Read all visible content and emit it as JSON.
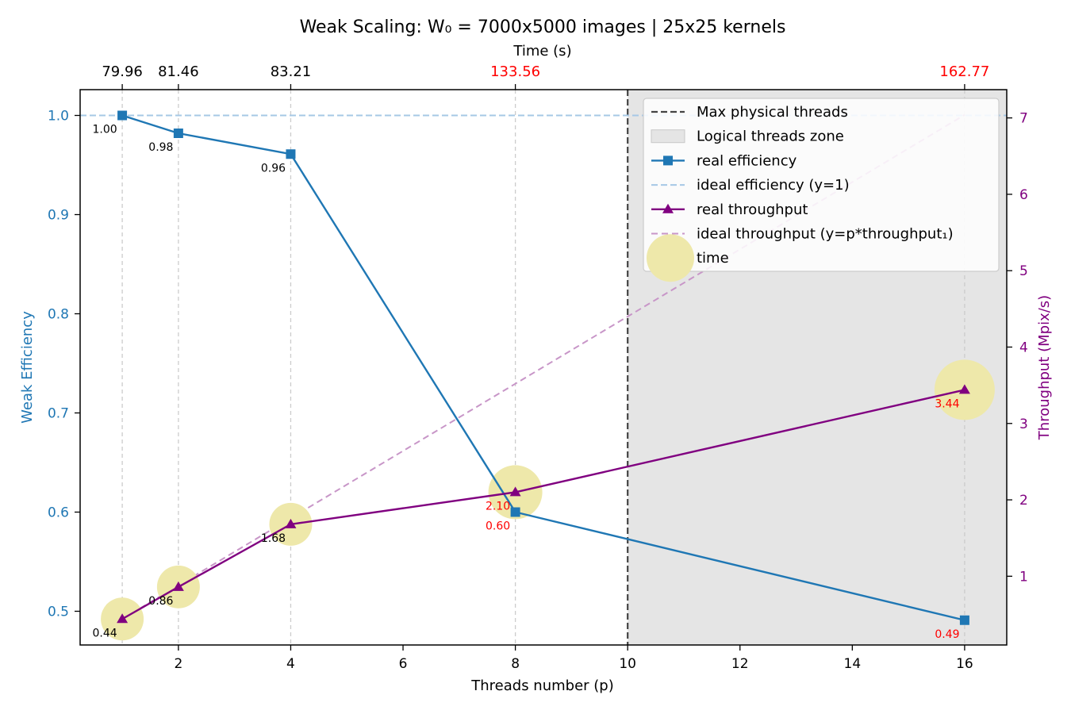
{
  "chart_data": {
    "type": "line",
    "title": "Weak Scaling: W₀ = 7000x5000 images | 25x25 kernels",
    "xlabel": "Threads number (p)",
    "ylabel_left": "Weak Efficiency",
    "ylabel_right": "Throughput (Mpix/s)",
    "top_axis_label": "Time (s)",
    "xlim": [
      0.25,
      16.75
    ],
    "ylim_left": [
      0.466,
      1.026
    ],
    "ylim_right": [
      0.1,
      7.37
    ],
    "x_ticks": [
      2,
      4,
      6,
      8,
      10,
      12,
      14,
      16
    ],
    "y_left_ticks": [
      0.5,
      0.6,
      0.7,
      0.8,
      0.9,
      1.0
    ],
    "y_left_tick_labels": [
      "0.5",
      "0.6",
      "0.7",
      "0.8",
      "0.9",
      "1.0"
    ],
    "y_right_ticks": [
      1,
      2,
      3,
      4,
      5,
      6,
      7
    ],
    "threads": [
      1,
      2,
      4,
      8,
      16
    ],
    "time_labels": [
      "79.96",
      "81.46",
      "83.21",
      "133.56",
      "162.77"
    ],
    "time_label_colors": [
      "#000000",
      "#000000",
      "#000000",
      "#ff0000",
      "#ff0000"
    ],
    "max_physical_threads": 10,
    "logical_zone": [
      10,
      16.75
    ],
    "series": [
      {
        "name": "real efficiency",
        "axis": "left",
        "color": "#1f77b4",
        "marker": "square",
        "values": [
          1.0,
          0.982,
          0.961,
          0.6,
          0.491
        ],
        "value_labels": [
          "1.00",
          "0.98",
          "0.96",
          "0.60",
          "0.49"
        ],
        "label_colors": [
          "#000000",
          "#000000",
          "#000000",
          "#ff0000",
          "#ff0000"
        ]
      },
      {
        "name": "real throughput",
        "axis": "right",
        "color": "#800080",
        "marker": "triangle",
        "values": [
          0.44,
          0.86,
          1.68,
          2.1,
          3.44
        ],
        "value_labels": [
          "0.44",
          "0.86",
          "1.68",
          "2.10",
          "3.44"
        ],
        "label_colors": [
          "#000000",
          "#000000",
          "#000000",
          "#ff0000",
          "#ff0000"
        ]
      }
    ],
    "ideal_efficiency": 1.0,
    "ideal_throughput_per_thread": 0.44,
    "legend": {
      "position": "upper-right",
      "items": [
        {
          "label": "Max physical threads",
          "style": "dashed-dark"
        },
        {
          "label": "Logical threads zone",
          "style": "gray-patch"
        },
        {
          "label": "real efficiency",
          "style": "blue-square"
        },
        {
          "label": "ideal efficiency (y=1)",
          "style": "lightblue-dashed"
        },
        {
          "label": "real throughput",
          "style": "purple-triangle"
        },
        {
          "label": "ideal throughput (y=p*throughput₁)",
          "style": "pink-dashed"
        },
        {
          "label": "time",
          "style": "yellow-circle"
        }
      ]
    },
    "colors": {
      "efficiency": "#1f77b4",
      "ideal_efficiency": "#a6c8e6",
      "throughput": "#800080",
      "ideal_throughput": "#c896c8",
      "time_bubble": "#eee8aa",
      "zone": "#e5e5e5",
      "max_line": "#444444",
      "grid": "#cccccc"
    }
  }
}
